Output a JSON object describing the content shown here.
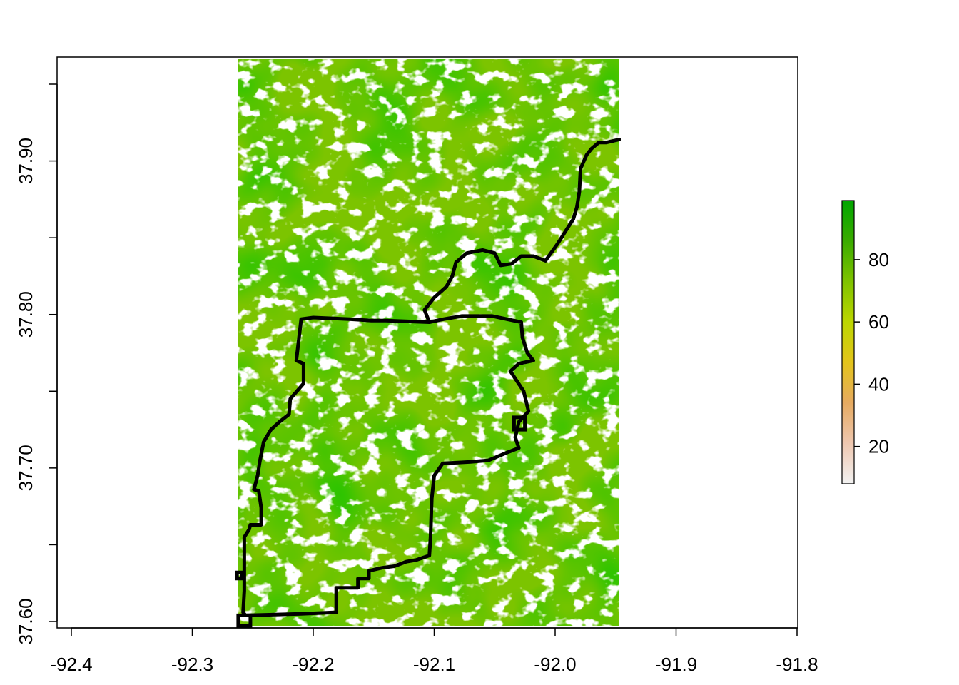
{
  "chart_data": {
    "type": "heatmap",
    "title": "",
    "xlabel": "",
    "ylabel": "",
    "xlim": [
      -92.4,
      -91.8
    ],
    "ylim": [
      37.6,
      37.97
    ],
    "x_ticks": [
      "-92.4",
      "-92.3",
      "-92.2",
      "-92.1",
      "-92.0",
      "-91.9",
      "-91.8"
    ],
    "x_tick_values": [
      -92.4,
      -92.3,
      -92.2,
      -92.1,
      -92.0,
      -91.9,
      -91.8
    ],
    "y_tick_values": [
      37.6,
      37.65,
      37.7,
      37.75,
      37.8,
      37.85,
      37.9,
      37.95
    ],
    "y_tick_labels": [
      "37.60",
      "",
      "37.70",
      "",
      "37.80",
      "",
      "37.90",
      ""
    ],
    "raster_extent": {
      "xmin": -92.262,
      "xmax": -91.947,
      "ymin": 37.6,
      "ymax": 37.97
    },
    "legend": {
      "position": "right",
      "min": 8,
      "max": 99,
      "ticks": [
        20,
        40,
        60,
        80
      ],
      "tick_labels": [
        "20",
        "40",
        "60",
        "80"
      ],
      "colors": [
        "#f2f2f2",
        "#eec7b0",
        "#e6aa60",
        "#e3c41a",
        "#bcd600",
        "#7fc300",
        "#3aab00",
        "#00a600"
      ]
    },
    "background_color": "#7cc400",
    "boundary_color": "#000000",
    "boundary_polygon": [
      [
        -92.256,
        37.604
      ],
      [
        -92.21,
        37.605
      ],
      [
        -92.181,
        37.606
      ],
      [
        -92.181,
        37.622
      ],
      [
        -92.163,
        37.622
      ],
      [
        -92.163,
        37.628
      ],
      [
        -92.154,
        37.628
      ],
      [
        -92.154,
        37.633
      ],
      [
        -92.143,
        37.635
      ],
      [
        -92.133,
        37.636
      ],
      [
        -92.123,
        37.639
      ],
      [
        -92.115,
        37.64
      ],
      [
        -92.104,
        37.643
      ],
      [
        -92.103,
        37.655
      ],
      [
        -92.102,
        37.68
      ],
      [
        -92.1,
        37.695
      ],
      [
        -92.093,
        37.703
      ],
      [
        -92.07,
        37.704
      ],
      [
        -92.055,
        37.705
      ],
      [
        -92.04,
        37.71
      ],
      [
        -92.03,
        37.713
      ],
      [
        -92.033,
        37.72
      ],
      [
        -92.03,
        37.73
      ],
      [
        -92.022,
        37.737
      ],
      [
        -92.026,
        37.75
      ],
      [
        -92.037,
        37.763
      ],
      [
        -92.03,
        37.768
      ],
      [
        -92.018,
        37.77
      ],
      [
        -92.023,
        37.775
      ],
      [
        -92.027,
        37.785
      ],
      [
        -92.028,
        37.795
      ],
      [
        -92.052,
        37.799
      ],
      [
        -92.077,
        37.799
      ],
      [
        -92.092,
        37.797
      ],
      [
        -92.104,
        37.795
      ],
      [
        -92.14,
        37.796
      ],
      [
        -92.152,
        37.796
      ],
      [
        -92.17,
        37.797
      ],
      [
        -92.2,
        37.798
      ],
      [
        -92.21,
        37.797
      ],
      [
        -92.214,
        37.77
      ],
      [
        -92.208,
        37.768
      ],
      [
        -92.208,
        37.755
      ],
      [
        -92.219,
        37.745
      ],
      [
        -92.22,
        37.735
      ],
      [
        -92.228,
        37.73
      ],
      [
        -92.235,
        37.725
      ],
      [
        -92.241,
        37.717
      ],
      [
        -92.244,
        37.705
      ],
      [
        -92.246,
        37.695
      ],
      [
        -92.249,
        37.686
      ],
      [
        -92.245,
        37.685
      ],
      [
        -92.243,
        37.674
      ],
      [
        -92.243,
        37.663
      ],
      [
        -92.252,
        37.663
      ],
      [
        -92.253,
        37.66
      ],
      [
        -92.257,
        37.655
      ],
      [
        -92.257,
        37.64
      ],
      [
        -92.257,
        37.62
      ],
      [
        -92.258,
        37.606
      ]
    ],
    "boundary_extension": [
      [
        -92.104,
        37.795
      ],
      [
        -92.108,
        37.803
      ],
      [
        -92.1,
        37.811
      ],
      [
        -92.09,
        37.818
      ],
      [
        -92.085,
        37.825
      ],
      [
        -92.082,
        37.834
      ],
      [
        -92.073,
        37.84
      ],
      [
        -92.06,
        37.842
      ],
      [
        -92.05,
        37.84
      ],
      [
        -92.045,
        37.832
      ],
      [
        -92.036,
        37.833
      ],
      [
        -92.028,
        37.838
      ],
      [
        -92.018,
        37.838
      ],
      [
        -92.008,
        37.835
      ],
      [
        -91.998,
        37.846
      ],
      [
        -91.99,
        37.856
      ],
      [
        -91.985,
        37.862
      ],
      [
        -91.982,
        37.87
      ],
      [
        -91.98,
        37.88
      ],
      [
        -91.979,
        37.895
      ],
      [
        -91.974,
        37.904
      ],
      [
        -91.97,
        37.908
      ],
      [
        -91.964,
        37.912
      ],
      [
        -91.958,
        37.912
      ],
      [
        -91.947,
        37.914
      ]
    ],
    "small_polygons": [
      [
        [
          -92.034,
          37.725
        ],
        [
          -92.025,
          37.725
        ],
        [
          -92.025,
          37.733
        ],
        [
          -92.034,
          37.733
        ]
      ],
      [
        [
          -92.262,
          37.604
        ],
        [
          -92.252,
          37.604
        ],
        [
          -92.252,
          37.597
        ],
        [
          -92.262,
          37.597
        ]
      ],
      [
        [
          -92.263,
          37.628
        ],
        [
          -92.259,
          37.628
        ],
        [
          -92.259,
          37.632
        ],
        [
          -92.263,
          37.632
        ]
      ]
    ]
  }
}
